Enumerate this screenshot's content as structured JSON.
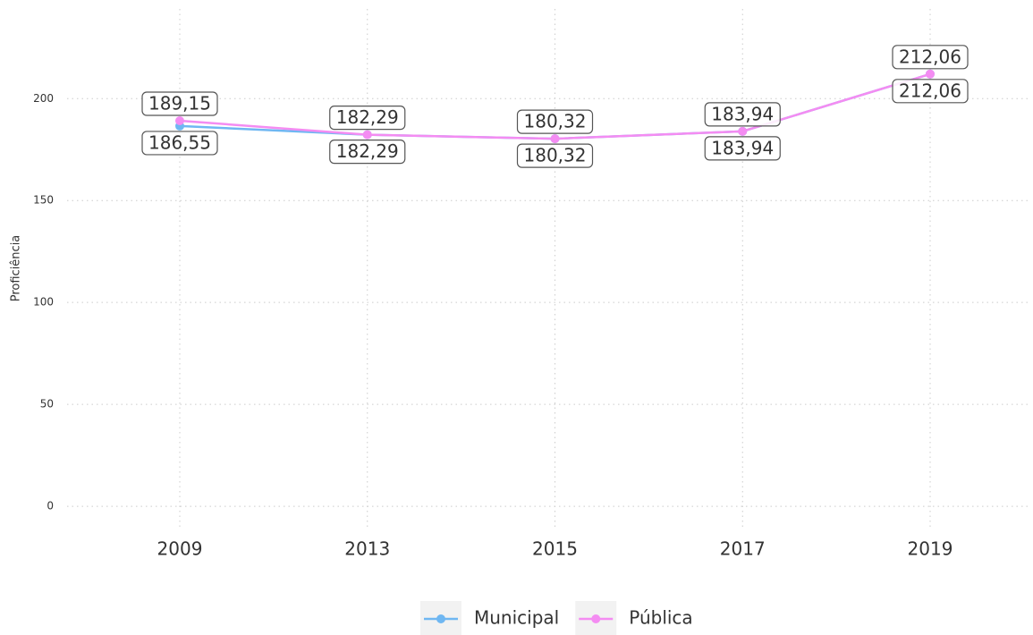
{
  "chart_data": {
    "type": "line",
    "y_label": "Proficiência",
    "categories": [
      "2009",
      "2013",
      "2015",
      "2017",
      "2019"
    ],
    "series": [
      {
        "name": "Municipal",
        "color": "#6fb7f2",
        "values": [
          186.55,
          182.29,
          180.32,
          183.94,
          212.06
        ],
        "value_labels": [
          "186,55",
          "182,29",
          "180,32",
          "183,94",
          "212,06"
        ]
      },
      {
        "name": "Pública",
        "color": "#f48cf2",
        "values": [
          189.15,
          182.29,
          180.32,
          183.94,
          212.06
        ],
        "value_labels": [
          "189,15",
          "182,29",
          "180,32",
          "183,94",
          "212,06"
        ]
      }
    ],
    "ylim": [
      -10.5,
      244
    ],
    "yticks": [
      0,
      50,
      100,
      150,
      200
    ],
    "grid": true,
    "legend": "bottom"
  }
}
